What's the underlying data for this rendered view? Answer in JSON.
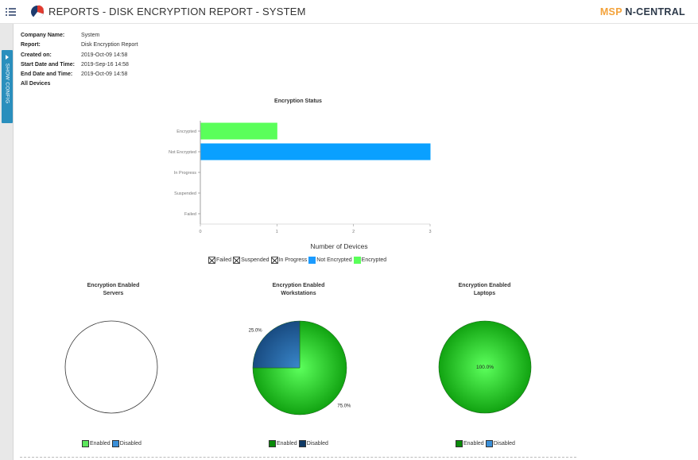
{
  "header": {
    "title": "REPORTS - DISK ENCRYPTION REPORT - SYSTEM",
    "brand_prefix": "MSP",
    "brand_name": "N-CENTRAL",
    "menu_icon": "hamburger-menu-icon",
    "logo_icon": "reports-pie-logo-icon"
  },
  "sidebar": {
    "show_config_label": "SHOW CONFIG"
  },
  "report_info": [
    {
      "label": "Company Name:",
      "value": "System"
    },
    {
      "label": "Report:",
      "value": "Disk Encryption Report"
    },
    {
      "label": "Created on:",
      "value": "2019-Oct-09 14:58"
    },
    {
      "label": "Start Date and Time:",
      "value": "2019-Sep-16 14:58"
    },
    {
      "label": "End Date and Time:",
      "value": "2019-Oct-09 14:58"
    },
    {
      "label": "All Devices",
      "value": ""
    }
  ],
  "chart_data": [
    {
      "type": "bar",
      "orientation": "horizontal",
      "title": "Encryption Status",
      "xlabel": "Number of Devices",
      "ylabel": "",
      "categories": [
        "Encrypted",
        "Not Encrypted",
        "In Progress",
        "Suspended",
        "Failed"
      ],
      "values": [
        1,
        3,
        0,
        0,
        0
      ],
      "colors": [
        "#5aff5a",
        "#0aa0ff",
        "#ffffff",
        "#ffffff",
        "#ffffff"
      ],
      "xlim": [
        0,
        3
      ],
      "xticks": [
        "0",
        "1",
        "2",
        "3"
      ],
      "legend": [
        {
          "name": "Failed",
          "swatch": "crossed"
        },
        {
          "name": "Suspended",
          "swatch": "crossed"
        },
        {
          "name": "In Progress",
          "swatch": "crossed"
        },
        {
          "name": "Not Encrypted",
          "color": "#1b9bff"
        },
        {
          "name": "Encrypted",
          "color": "#5aff5a"
        }
      ],
      "legend_position": "bottom"
    },
    {
      "type": "pie",
      "title_line1": "Encryption Enabled",
      "title_line2": "Servers",
      "slices": [],
      "legend": [
        {
          "name": "Enabled",
          "color": "#5ce65c"
        },
        {
          "name": "Disabled",
          "color": "#3a8fd8"
        }
      ]
    },
    {
      "type": "pie",
      "title_line1": "Encryption Enabled",
      "title_line2": "Workstations",
      "slices": [
        {
          "name": "Enabled",
          "value": 75.0,
          "label": "75.0%",
          "color": "#2ecc2e"
        },
        {
          "name": "Disabled",
          "value": 25.0,
          "label": "25.0%",
          "color": "#1f5a9a"
        }
      ],
      "legend": [
        {
          "name": "Enabled",
          "color": "#0a8a0a"
        },
        {
          "name": "Disabled",
          "color": "#103a66"
        }
      ]
    },
    {
      "type": "pie",
      "title_line1": "Encryption Enabled",
      "title_line2": "Laptops",
      "slices": [
        {
          "name": "Enabled",
          "value": 100.0,
          "label": "100.0%",
          "color": "#2ecc2e"
        }
      ],
      "legend": [
        {
          "name": "Enabled",
          "color": "#0a8a0a"
        },
        {
          "name": "Disabled",
          "color": "#3a8fd8"
        }
      ]
    }
  ]
}
